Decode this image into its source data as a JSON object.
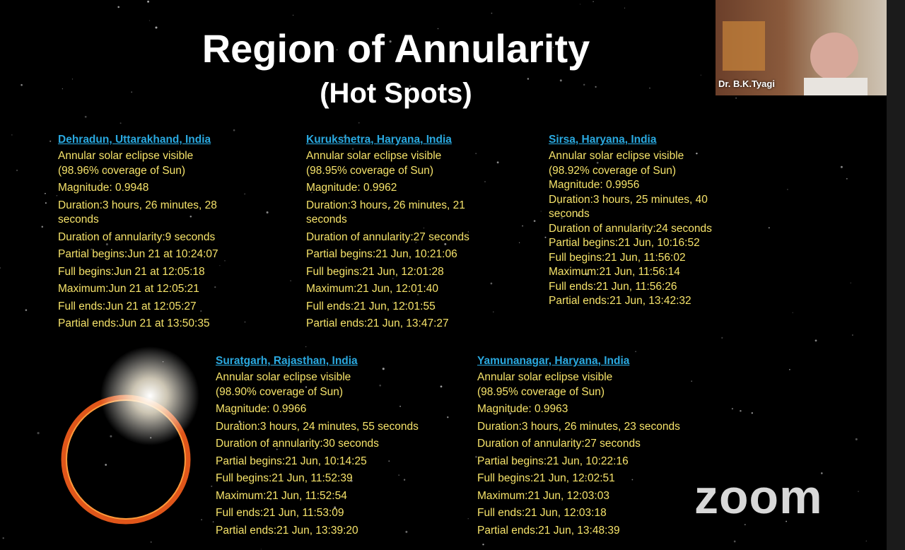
{
  "slide": {
    "title": "Region of Annularity",
    "subtitle": "(Hot Spots)",
    "locations": [
      {
        "name": "Dehradun, Uttarakhand, India",
        "lines": [
          "Annular solar eclipse visible",
          "(98.96% coverage of Sun)",
          "Magnitude: 0.9948",
          "Duration:3 hours, 26 minutes, 28 seconds",
          "Duration of annularity:9 seconds",
          "Partial begins:Jun 21 at 10:24:07",
          "Full begins:Jun 21 at 12:05:18",
          "Maximum:Jun 21 at 12:05:21",
          "Full ends:Jun 21 at 12:05:27",
          "Partial ends:Jun 21 at 13:50:35"
        ]
      },
      {
        "name": "Kurukshetra, Haryana, India",
        "lines": [
          "Annular solar eclipse visible",
          "(98.95% coverage of Sun)",
          "Magnitude: 0.9962",
          "Duration:3 hours, 26 minutes, 21 seconds",
          "Duration of annularity:27 seconds",
          "Partial begins:21 Jun, 10:21:06",
          "Full begins:21 Jun, 12:01:28",
          "Maximum:21 Jun, 12:01:40",
          "Full ends:21 Jun, 12:01:55",
          "Partial ends:21 Jun, 13:47:27"
        ]
      },
      {
        "name": "Sirsa, Haryana, India",
        "lines": [
          "Annular solar eclipse visible",
          "(98.92% coverage of Sun)",
          "Magnitude: 0.9956",
          "Duration:3 hours, 25 minutes, 40 seconds",
          "Duration of annularity:24 seconds",
          "Partial begins:21 Jun, 10:16:52",
          "Full begins:21 Jun, 11:56:02",
          "Maximum:21 Jun, 11:56:14",
          "Full ends:21 Jun, 11:56:26",
          "Partial ends:21 Jun, 13:42:32"
        ]
      },
      {
        "name": "Suratgarh, Rajasthan, India",
        "lines": [
          "Annular solar eclipse visible",
          "(98.90% coverage of Sun)",
          "Magnitude: 0.9966",
          "Duration:3 hours, 24 minutes, 55 seconds",
          "Duration of annularity:30 seconds",
          "Partial begins:21 Jun, 10:14:25",
          "Full begins:21 Jun, 11:52:39",
          "Maximum:21 Jun, 11:52:54",
          "Full ends:21 Jun, 11:53:09",
          "Partial ends:21 Jun, 13:39:20"
        ]
      },
      {
        "name": "Yamunanagar, Haryana, India",
        "lines": [
          "Annular solar eclipse visible",
          "(98.95% coverage of Sun)",
          "Magnitude: 0.9963",
          "Duration:3 hours, 26 minutes, 23 seconds",
          "Duration of annularity:27 seconds",
          "Partial begins:21 Jun, 10:22:16",
          "Full begins:21 Jun, 12:02:51",
          "Maximum:21 Jun, 12:03:03",
          "Full ends:21 Jun, 12:03:18",
          "Partial ends:21 Jun, 13:48:39"
        ]
      }
    ]
  },
  "video": {
    "participant": "Dr. B.K.Tyagi"
  },
  "watermark": "zoom"
}
